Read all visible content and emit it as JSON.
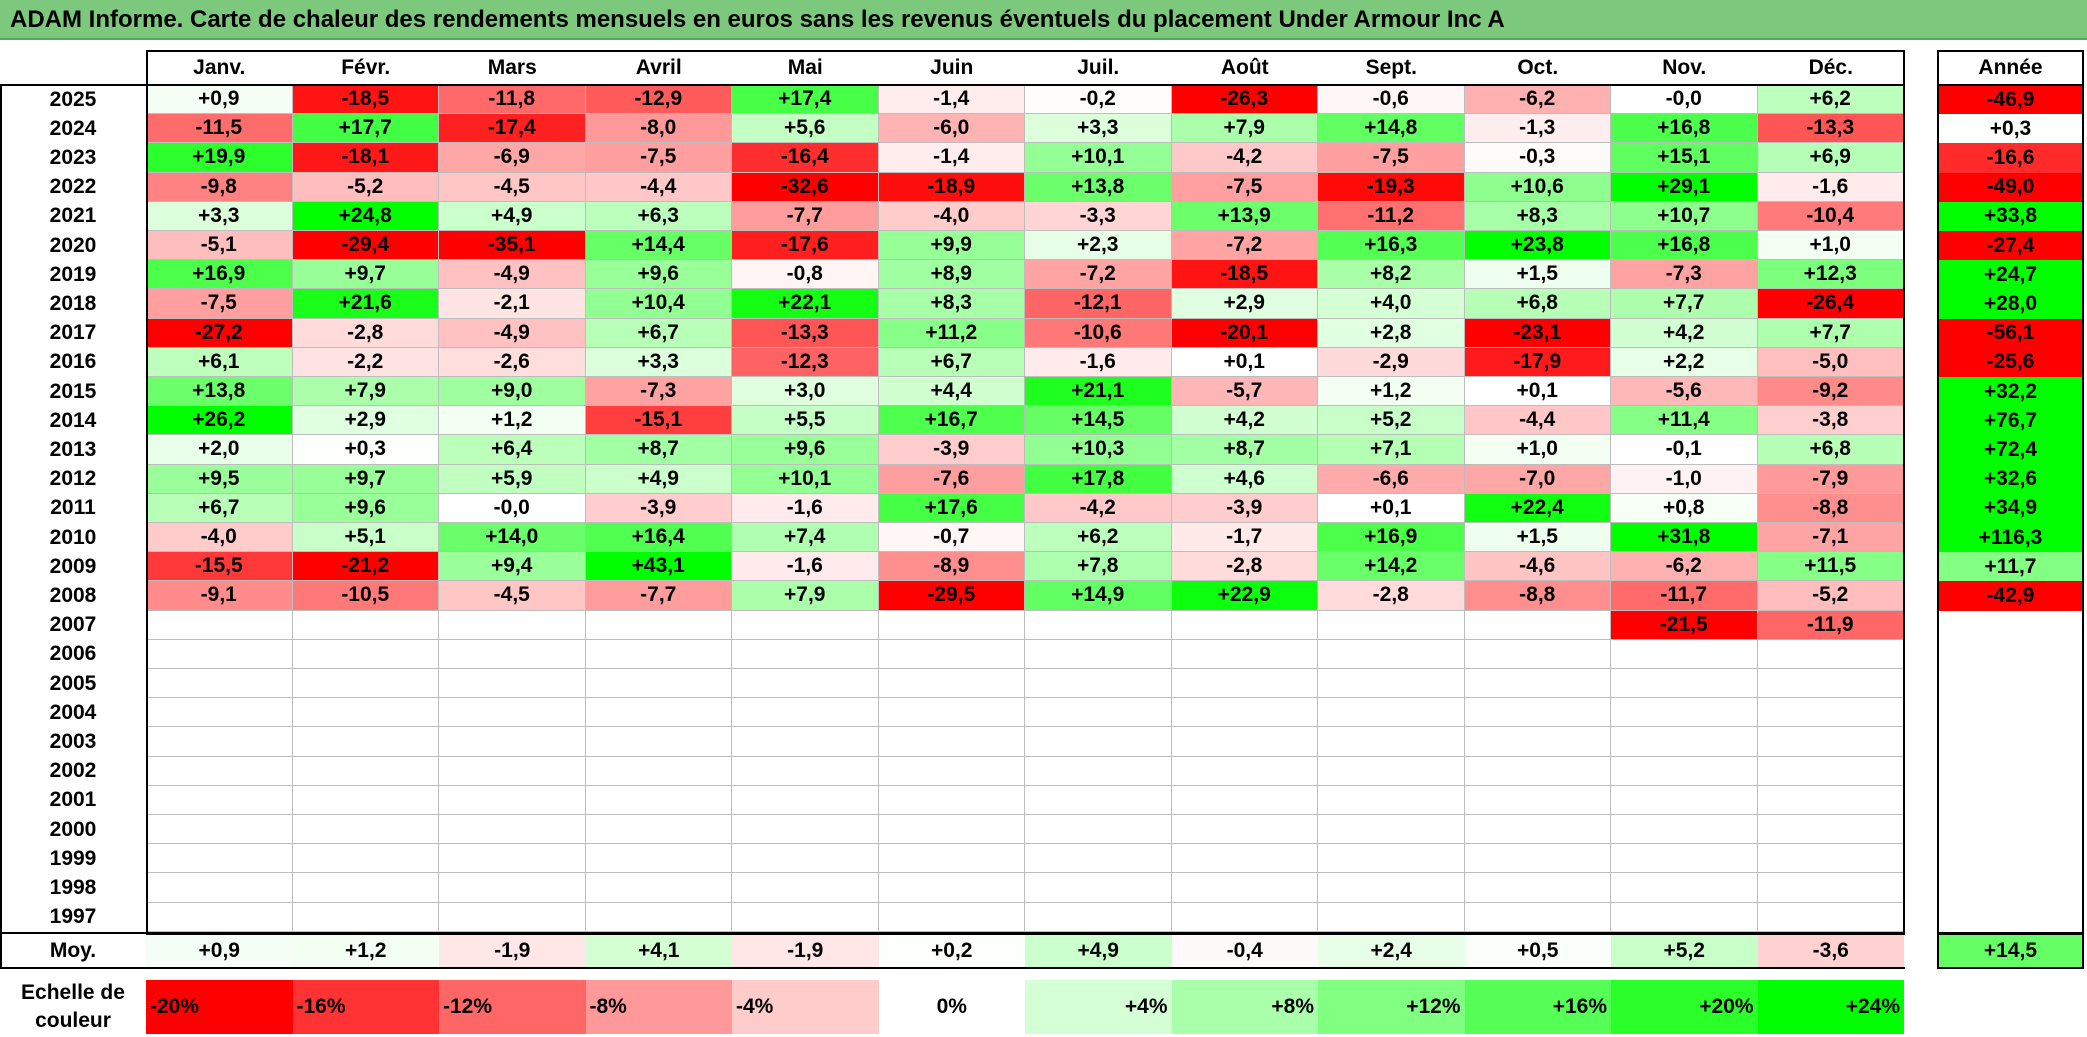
{
  "title": "ADAM Informe. Carte de chaleur des rendements mensuels en euros sans les revenus éventuels du placement Under Armour Inc A",
  "chart_data": {
    "type": "heatmap",
    "title": "ADAM Informe. Carte de chaleur des rendements mensuels en euros sans les revenus éventuels du placement Under Armour Inc A",
    "columns": [
      "Janv.",
      "Févr.",
      "Mars",
      "Avril",
      "Mai",
      "Juin",
      "Juil.",
      "Août",
      "Sept.",
      "Oct.",
      "Nov.",
      "Déc."
    ],
    "year_header": "Année",
    "rows": [
      {
        "year": "2025",
        "values": [
          "+0,9",
          "-18,5",
          "-11,8",
          "-12,9",
          "+17,4",
          "-1,4",
          "-0,2",
          "-26,3",
          "-0,6",
          "-6,2",
          "-0,0",
          "+6,2"
        ],
        "annual": "-46,9"
      },
      {
        "year": "2024",
        "values": [
          "-11,5",
          "+17,7",
          "-17,4",
          "-8,0",
          "+5,6",
          "-6,0",
          "+3,3",
          "+7,9",
          "+14,8",
          "-1,3",
          "+16,8",
          "-13,3"
        ],
        "annual": "+0,3"
      },
      {
        "year": "2023",
        "values": [
          "+19,9",
          "-18,1",
          "-6,9",
          "-7,5",
          "-16,4",
          "-1,4",
          "+10,1",
          "-4,2",
          "-7,5",
          "-0,3",
          "+15,1",
          "+6,9"
        ],
        "annual": "-16,6"
      },
      {
        "year": "2022",
        "values": [
          "-9,8",
          "-5,2",
          "-4,5",
          "-4,4",
          "-32,6",
          "-18,9",
          "+13,8",
          "-7,5",
          "-19,3",
          "+10,6",
          "+29,1",
          "-1,6"
        ],
        "annual": "-49,0"
      },
      {
        "year": "2021",
        "values": [
          "+3,3",
          "+24,8",
          "+4,9",
          "+6,3",
          "-7,7",
          "-4,0",
          "-3,3",
          "+13,9",
          "-11,2",
          "+8,3",
          "+10,7",
          "-10,4"
        ],
        "annual": "+33,8"
      },
      {
        "year": "2020",
        "values": [
          "-5,1",
          "-29,4",
          "-35,1",
          "+14,4",
          "-17,6",
          "+9,9",
          "+2,3",
          "-7,2",
          "+16,3",
          "+23,8",
          "+16,8",
          "+1,0"
        ],
        "annual": "-27,4"
      },
      {
        "year": "2019",
        "values": [
          "+16,9",
          "+9,7",
          "-4,9",
          "+9,6",
          "-0,8",
          "+8,9",
          "-7,2",
          "-18,5",
          "+8,2",
          "+1,5",
          "-7,3",
          "+12,3"
        ],
        "annual": "+24,7"
      },
      {
        "year": "2018",
        "values": [
          "-7,5",
          "+21,6",
          "-2,1",
          "+10,4",
          "+22,1",
          "+8,3",
          "-12,1",
          "+2,9",
          "+4,0",
          "+6,8",
          "+7,7",
          "-26,4"
        ],
        "annual": "+28,0"
      },
      {
        "year": "2017",
        "values": [
          "-27,2",
          "-2,8",
          "-4,9",
          "+6,7",
          "-13,3",
          "+11,2",
          "-10,6",
          "-20,1",
          "+2,8",
          "-23,1",
          "+4,2",
          "+7,7"
        ],
        "annual": "-56,1"
      },
      {
        "year": "2016",
        "values": [
          "+6,1",
          "-2,2",
          "-2,6",
          "+3,3",
          "-12,3",
          "+6,7",
          "-1,6",
          "+0,1",
          "-2,9",
          "-17,9",
          "+2,2",
          "-5,0"
        ],
        "annual": "-25,6"
      },
      {
        "year": "2015",
        "values": [
          "+13,8",
          "+7,9",
          "+9,0",
          "-7,3",
          "+3,0",
          "+4,4",
          "+21,1",
          "-5,7",
          "+1,2",
          "+0,1",
          "-5,6",
          "-9,2"
        ],
        "annual": "+32,2"
      },
      {
        "year": "2014",
        "values": [
          "+26,2",
          "+2,9",
          "+1,2",
          "-15,1",
          "+5,5",
          "+16,7",
          "+14,5",
          "+4,2",
          "+5,2",
          "-4,4",
          "+11,4",
          "-3,8"
        ],
        "annual": "+76,7"
      },
      {
        "year": "2013",
        "values": [
          "+2,0",
          "+0,3",
          "+6,4",
          "+8,7",
          "+9,6",
          "-3,9",
          "+10,3",
          "+8,7",
          "+7,1",
          "+1,0",
          "-0,1",
          "+6,8"
        ],
        "annual": "+72,4"
      },
      {
        "year": "2012",
        "values": [
          "+9,5",
          "+9,7",
          "+5,9",
          "+4,9",
          "+10,1",
          "-7,6",
          "+17,8",
          "+4,6",
          "-6,6",
          "-7,0",
          "-1,0",
          "-7,9"
        ],
        "annual": "+32,6"
      },
      {
        "year": "2011",
        "values": [
          "+6,7",
          "+9,6",
          "-0,0",
          "-3,9",
          "-1,6",
          "+17,6",
          "-4,2",
          "-3,9",
          "+0,1",
          "+22,4",
          "+0,8",
          "-8,8"
        ],
        "annual": "+34,9"
      },
      {
        "year": "2010",
        "values": [
          "-4,0",
          "+5,1",
          "+14,0",
          "+16,4",
          "+7,4",
          "-0,7",
          "+6,2",
          "-1,7",
          "+16,9",
          "+1,5",
          "+31,8",
          "-7,1"
        ],
        "annual": "+116,3"
      },
      {
        "year": "2009",
        "values": [
          "-15,5",
          "-21,2",
          "+9,4",
          "+43,1",
          "-1,6",
          "-8,9",
          "+7,8",
          "-2,8",
          "+14,2",
          "-4,6",
          "-6,2",
          "+11,5"
        ],
        "annual": "+11,7"
      },
      {
        "year": "2008",
        "values": [
          "-9,1",
          "-10,5",
          "-4,5",
          "-7,7",
          "+7,9",
          "-29,5",
          "+14,9",
          "+22,9",
          "-2,8",
          "-8,8",
          "-11,7",
          "-5,2"
        ],
        "annual": "-42,9"
      },
      {
        "year": "2007",
        "values": [
          "",
          "",
          "",
          "",
          "",
          "",
          "",
          "",
          "",
          "",
          "-21,5",
          "-11,9"
        ],
        "annual": ""
      },
      {
        "year": "2006",
        "values": [
          "",
          "",
          "",
          "",
          "",
          "",
          "",
          "",
          "",
          "",
          "",
          ""
        ],
        "annual": ""
      },
      {
        "year": "2005",
        "values": [
          "",
          "",
          "",
          "",
          "",
          "",
          "",
          "",
          "",
          "",
          "",
          ""
        ],
        "annual": ""
      },
      {
        "year": "2004",
        "values": [
          "",
          "",
          "",
          "",
          "",
          "",
          "",
          "",
          "",
          "",
          "",
          ""
        ],
        "annual": ""
      },
      {
        "year": "2003",
        "values": [
          "",
          "",
          "",
          "",
          "",
          "",
          "",
          "",
          "",
          "",
          "",
          ""
        ],
        "annual": ""
      },
      {
        "year": "2002",
        "values": [
          "",
          "",
          "",
          "",
          "",
          "",
          "",
          "",
          "",
          "",
          "",
          ""
        ],
        "annual": ""
      },
      {
        "year": "2001",
        "values": [
          "",
          "",
          "",
          "",
          "",
          "",
          "",
          "",
          "",
          "",
          "",
          ""
        ],
        "annual": ""
      },
      {
        "year": "2000",
        "values": [
          "",
          "",
          "",
          "",
          "",
          "",
          "",
          "",
          "",
          "",
          "",
          ""
        ],
        "annual": ""
      },
      {
        "year": "1999",
        "values": [
          "",
          "",
          "",
          "",
          "",
          "",
          "",
          "",
          "",
          "",
          "",
          ""
        ],
        "annual": ""
      },
      {
        "year": "1998",
        "values": [
          "",
          "",
          "",
          "",
          "",
          "",
          "",
          "",
          "",
          "",
          "",
          ""
        ],
        "annual": ""
      },
      {
        "year": "1997",
        "values": [
          "",
          "",
          "",
          "",
          "",
          "",
          "",
          "",
          "",
          "",
          "",
          ""
        ],
        "annual": ""
      }
    ],
    "average": {
      "label": "Moy.",
      "values": [
        "+0,9",
        "+1,2",
        "-1,9",
        "+4,1",
        "-1,9",
        "+0,2",
        "+4,9",
        "-0,4",
        "+2,4",
        "+0,5",
        "+5,2",
        "-3,6"
      ],
      "annual": "+14,5"
    },
    "color_scale": {
      "label": "Echelle de couleur",
      "stops": [
        "-20%",
        "-16%",
        "-12%",
        "-8%",
        "-4%",
        "0%",
        "+4%",
        "+8%",
        "+12%",
        "+16%",
        "+20%",
        "+24%"
      ],
      "stop_values": [
        -20,
        -16,
        -12,
        -8,
        -4,
        0,
        4,
        8,
        12,
        16,
        20,
        24
      ]
    },
    "colors": {
      "negative_max": "#ff0000",
      "neutral": "#ffffff",
      "positive_max": "#00ff00",
      "title_bar": "#7cc87c"
    }
  }
}
